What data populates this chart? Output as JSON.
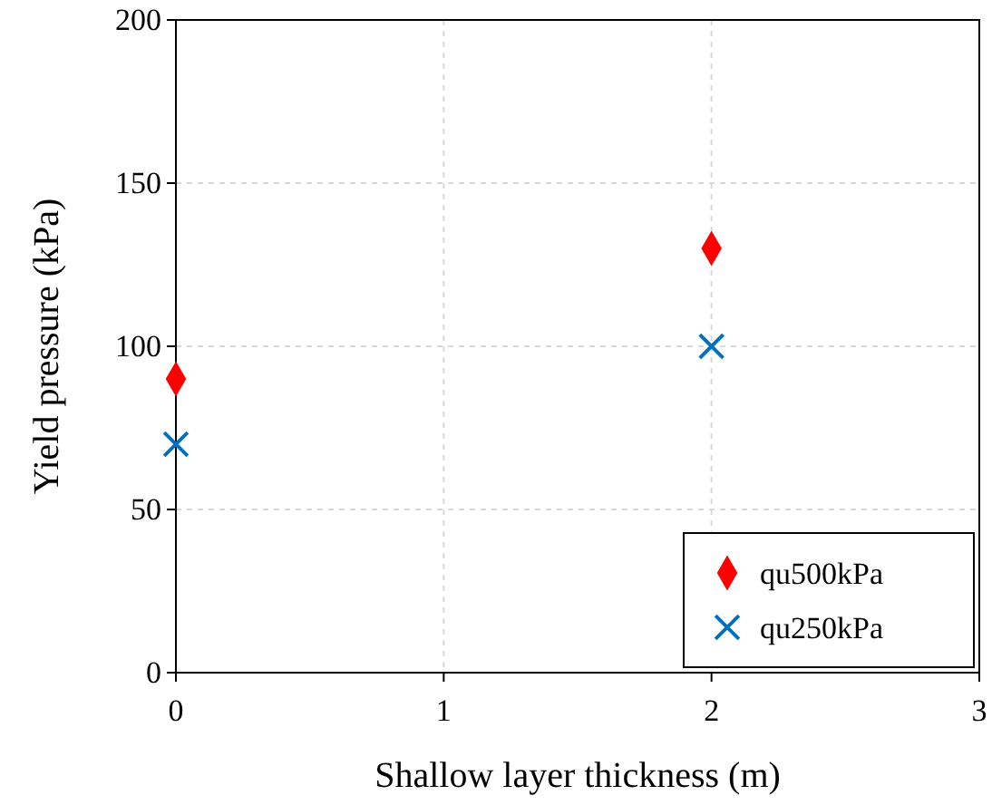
{
  "chart_data": {
    "type": "scatter",
    "xlabel": "Shallow layer thickness (m)",
    "ylabel": "Yield pressure (kPa)",
    "x": [
      0,
      2
    ],
    "xlim": [
      0,
      3
    ],
    "xticks": [
      0,
      1,
      2,
      3
    ],
    "ylim": [
      0,
      200
    ],
    "yticks": [
      0,
      50,
      100,
      150,
      200
    ],
    "grid": true,
    "legend": "bottom right",
    "series": [
      {
        "name": "qu500kPa",
        "color": "#ff0000",
        "marker": "diamond",
        "values": [
          90,
          130
        ]
      },
      {
        "name": "qu250kPa",
        "color": "#0070c0",
        "marker": "cross",
        "values": [
          70,
          100
        ]
      }
    ]
  }
}
